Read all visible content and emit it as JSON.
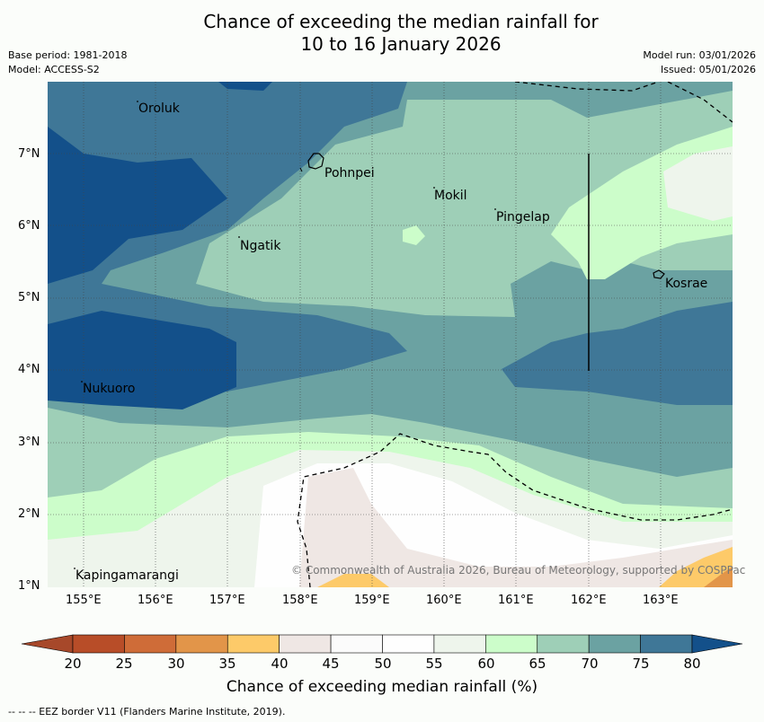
{
  "header": {
    "title_line1": "Chance of exceeding the median rainfall for",
    "title_line2": "10 to 16 January 2026",
    "base_period": "Base period: 1981-2018",
    "model": "Model: ACCESS-S2",
    "model_run": "Model run: 03/01/2026",
    "issued": "Issued: 05/01/2026"
  },
  "map": {
    "places": [
      "Oroluk",
      "Pohnpei",
      "Mokil",
      "Pingelap",
      "Ngatik",
      "Kosrae",
      "Nukuoro",
      "Kapingamarangi"
    ],
    "lat_ticks": [
      "7°N",
      "6°N",
      "5°N",
      "4°N",
      "3°N",
      "2°N",
      "1°N"
    ],
    "lon_ticks": [
      "155°E",
      "156°E",
      "157°E",
      "158°E",
      "159°E",
      "160°E",
      "161°E",
      "162°E",
      "163°E"
    ],
    "copyright": "© Commonwealth of Australia 2026, Bureau of Meteorology, supported by COSPPac"
  },
  "colorbar": {
    "title": "Chance of exceeding median rainfall (%)",
    "labels": [
      "20",
      "25",
      "30",
      "35",
      "40",
      "45",
      "50",
      "55",
      "60",
      "65",
      "70",
      "75",
      "80"
    ],
    "colors": {
      "below": "#a7482a",
      "bins": [
        "#b84d28",
        "#cf6c38",
        "#e29549",
        "#fdca69",
        "#efe7e4",
        "#fbfbfb",
        "#fefefe",
        "#eef5ec",
        "#ccfdca",
        "#9ecfb7",
        "#6ba2a2",
        "#3f7797"
      ],
      "above": "#13508a"
    }
  },
  "footnote": "-- -- -- EEZ border V11 (Flanders Marine Institute, 2019)."
}
